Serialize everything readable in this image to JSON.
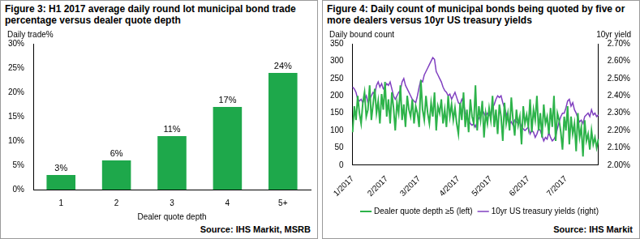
{
  "chart_data": [
    {
      "type": "bar",
      "title": "Figure 3: H1 2017 average daily round lot municipal bond trade percentage versus dealer quote depth",
      "source": "Source: IHS Markit, MSRB",
      "ylabel": "Daily trade%",
      "xlabel": "Dealer quote depth",
      "categories": [
        "1",
        "2",
        "3",
        "4",
        "5+"
      ],
      "values": [
        3,
        6,
        11,
        17,
        24
      ],
      "value_labels": [
        "3%",
        "6%",
        "11%",
        "17%",
        "24%"
      ],
      "data_labels": true,
      "color": "#1ea84b",
      "ylim": [
        0,
        30
      ],
      "yticks": [
        {
          "value": 0,
          "label": "0%"
        },
        {
          "value": 5,
          "label": "5%"
        },
        {
          "value": 10,
          "label": "10%"
        },
        {
          "value": 15,
          "label": "15%"
        },
        {
          "value": 20,
          "label": "20%"
        },
        {
          "value": 25,
          "label": "25%"
        },
        {
          "value": 30,
          "label": "30%"
        }
      ],
      "grid": false
    },
    {
      "type": "line",
      "title": "Figure 4: Daily count of municipal bonds being quoted by five or more dealers versus 10yr US treasury yields",
      "source": "Source: IHS Markit",
      "ylabel": "Daily bound count",
      "y2label": "10yr yield",
      "categories": [
        "1/2017",
        null,
        null,
        null,
        null,
        null,
        null,
        null,
        null,
        null,
        null,
        null,
        null,
        null,
        null,
        null,
        null,
        null,
        null,
        null,
        "2/2017",
        null,
        null,
        null,
        null,
        null,
        null,
        null,
        null,
        null,
        null,
        null,
        null,
        null,
        null,
        null,
        null,
        null,
        null,
        "3/2017",
        null,
        null,
        null,
        null,
        null,
        null,
        null,
        null,
        null,
        null,
        null,
        null,
        null,
        null,
        null,
        null,
        null,
        null,
        null,
        null,
        null,
        null,
        "4/2017",
        null,
        null,
        null,
        null,
        null,
        null,
        null,
        null,
        null,
        null,
        null,
        null,
        null,
        null,
        null,
        null,
        null,
        null,
        "5/2017",
        null,
        null,
        null,
        null,
        null,
        null,
        null,
        null,
        null,
        null,
        null,
        null,
        null,
        null,
        null,
        null,
        null,
        null,
        null,
        null,
        null,
        "6/2017",
        null,
        null,
        null,
        null,
        null,
        null,
        null,
        null,
        null,
        null,
        null,
        null,
        null,
        null,
        null,
        null,
        null,
        null,
        null,
        null,
        null,
        "7/2017",
        null,
        null,
        null,
        null,
        null,
        null,
        null,
        null,
        null,
        null,
        null,
        null,
        null,
        null,
        null,
        null,
        null,
        null,
        null
      ],
      "series": [
        {
          "name": "Dealer quote depth ≥5 (left)",
          "color": "#2db34a",
          "axis": "y",
          "values": [
            95,
            170,
            130,
            200,
            150,
            120,
            180,
            210,
            140,
            160,
            230,
            130,
            175,
            220,
            150,
            185,
            120,
            205,
            160,
            240,
            140,
            190,
            120,
            210,
            165,
            100,
            180,
            150,
            230,
            130,
            175,
            110,
            200,
            160,
            140,
            190,
            120,
            170,
            150,
            110,
            245,
            160,
            130,
            200,
            150,
            120,
            180,
            140,
            210,
            100,
            170,
            150,
            190,
            120,
            160,
            110,
            200,
            140,
            175,
            130,
            165,
            120,
            90,
            180,
            130,
            210,
            110,
            160,
            95,
            190,
            140,
            120,
            230,
            100,
            170,
            130,
            185,
            80,
            150,
            120,
            165,
            130,
            200,
            110,
            160,
            90,
            175,
            140,
            70,
            180,
            120,
            150,
            100,
            195,
            130,
            85,
            160,
            115,
            140,
            60,
            170,
            120,
            145,
            110,
            190,
            95,
            160,
            130,
            200,
            100,
            150,
            80,
            175,
            120,
            140,
            90,
            165,
            110,
            200,
            70,
            150,
            130,
            95,
            45,
            140,
            100,
            170,
            60,
            140,
            90,
            120,
            40,
            150,
            80,
            110,
            25,
            130,
            70,
            90,
            45,
            100,
            60,
            80,
            50,
            75
          ]
        },
        {
          "name": "10yr US treasury yields (right)",
          "color": "#8040c0",
          "axis": "y2",
          "values": [
            2.45,
            2.44,
            2.42,
            2.38,
            2.37,
            2.38,
            2.36,
            2.38,
            2.4,
            2.36,
            2.38,
            2.4,
            2.42,
            2.41,
            2.46,
            2.48,
            2.45,
            2.47,
            2.44,
            2.45,
            2.47,
            2.46,
            2.48,
            2.44,
            2.4,
            2.38,
            2.4,
            2.42,
            2.43,
            2.48,
            2.5,
            2.46,
            2.44,
            2.42,
            2.4,
            2.38,
            2.37,
            2.36,
            2.4,
            2.45,
            2.49,
            2.48,
            2.52,
            2.54,
            2.56,
            2.58,
            2.6,
            2.62,
            2.61,
            2.54,
            2.52,
            2.5,
            2.48,
            2.45,
            2.43,
            2.42,
            2.4,
            2.41,
            2.38,
            2.4,
            2.42,
            2.39,
            2.36,
            2.35,
            2.38,
            2.36,
            2.3,
            2.28,
            2.26,
            2.24,
            2.23,
            2.24,
            2.22,
            2.25,
            2.27,
            2.29,
            2.32,
            2.3,
            2.28,
            2.3,
            2.29,
            2.28,
            2.33,
            2.35,
            2.38,
            2.4,
            2.39,
            2.4,
            2.36,
            2.33,
            2.3,
            2.26,
            2.24,
            2.25,
            2.23,
            2.26,
            2.25,
            2.24,
            2.25,
            2.22,
            2.21,
            2.2,
            2.21,
            2.22,
            2.18,
            2.2,
            2.19,
            2.16,
            2.18,
            2.21,
            2.2,
            2.17,
            2.14,
            2.16,
            2.15,
            2.19,
            2.16,
            2.14,
            2.15,
            2.17,
            2.21,
            2.25,
            2.28,
            2.3,
            2.3,
            2.33,
            2.37,
            2.38,
            2.34,
            2.36,
            2.32,
            2.3,
            2.27,
            2.25,
            2.26,
            2.24,
            2.28,
            2.29,
            2.3,
            2.28,
            2.32,
            2.29,
            2.3,
            2.28,
            2.29
          ]
        }
      ],
      "ylim": [
        0,
        350
      ],
      "yticks": [
        0,
        50,
        100,
        150,
        200,
        250,
        300,
        350
      ],
      "y2lim": [
        2.0,
        2.7
      ],
      "y2ticks": [
        {
          "value": 2.0,
          "label": "2.00%"
        },
        {
          "value": 2.1,
          "label": "2.10%"
        },
        {
          "value": 2.2,
          "label": "2.20%"
        },
        {
          "value": 2.3,
          "label": "2.30%"
        },
        {
          "value": 2.4,
          "label": "2.40%"
        },
        {
          "value": 2.5,
          "label": "2.50%"
        },
        {
          "value": 2.6,
          "label": "2.60%"
        },
        {
          "value": 2.7,
          "label": "2.70%"
        }
      ],
      "legend": "bottom",
      "grid": false
    }
  ]
}
